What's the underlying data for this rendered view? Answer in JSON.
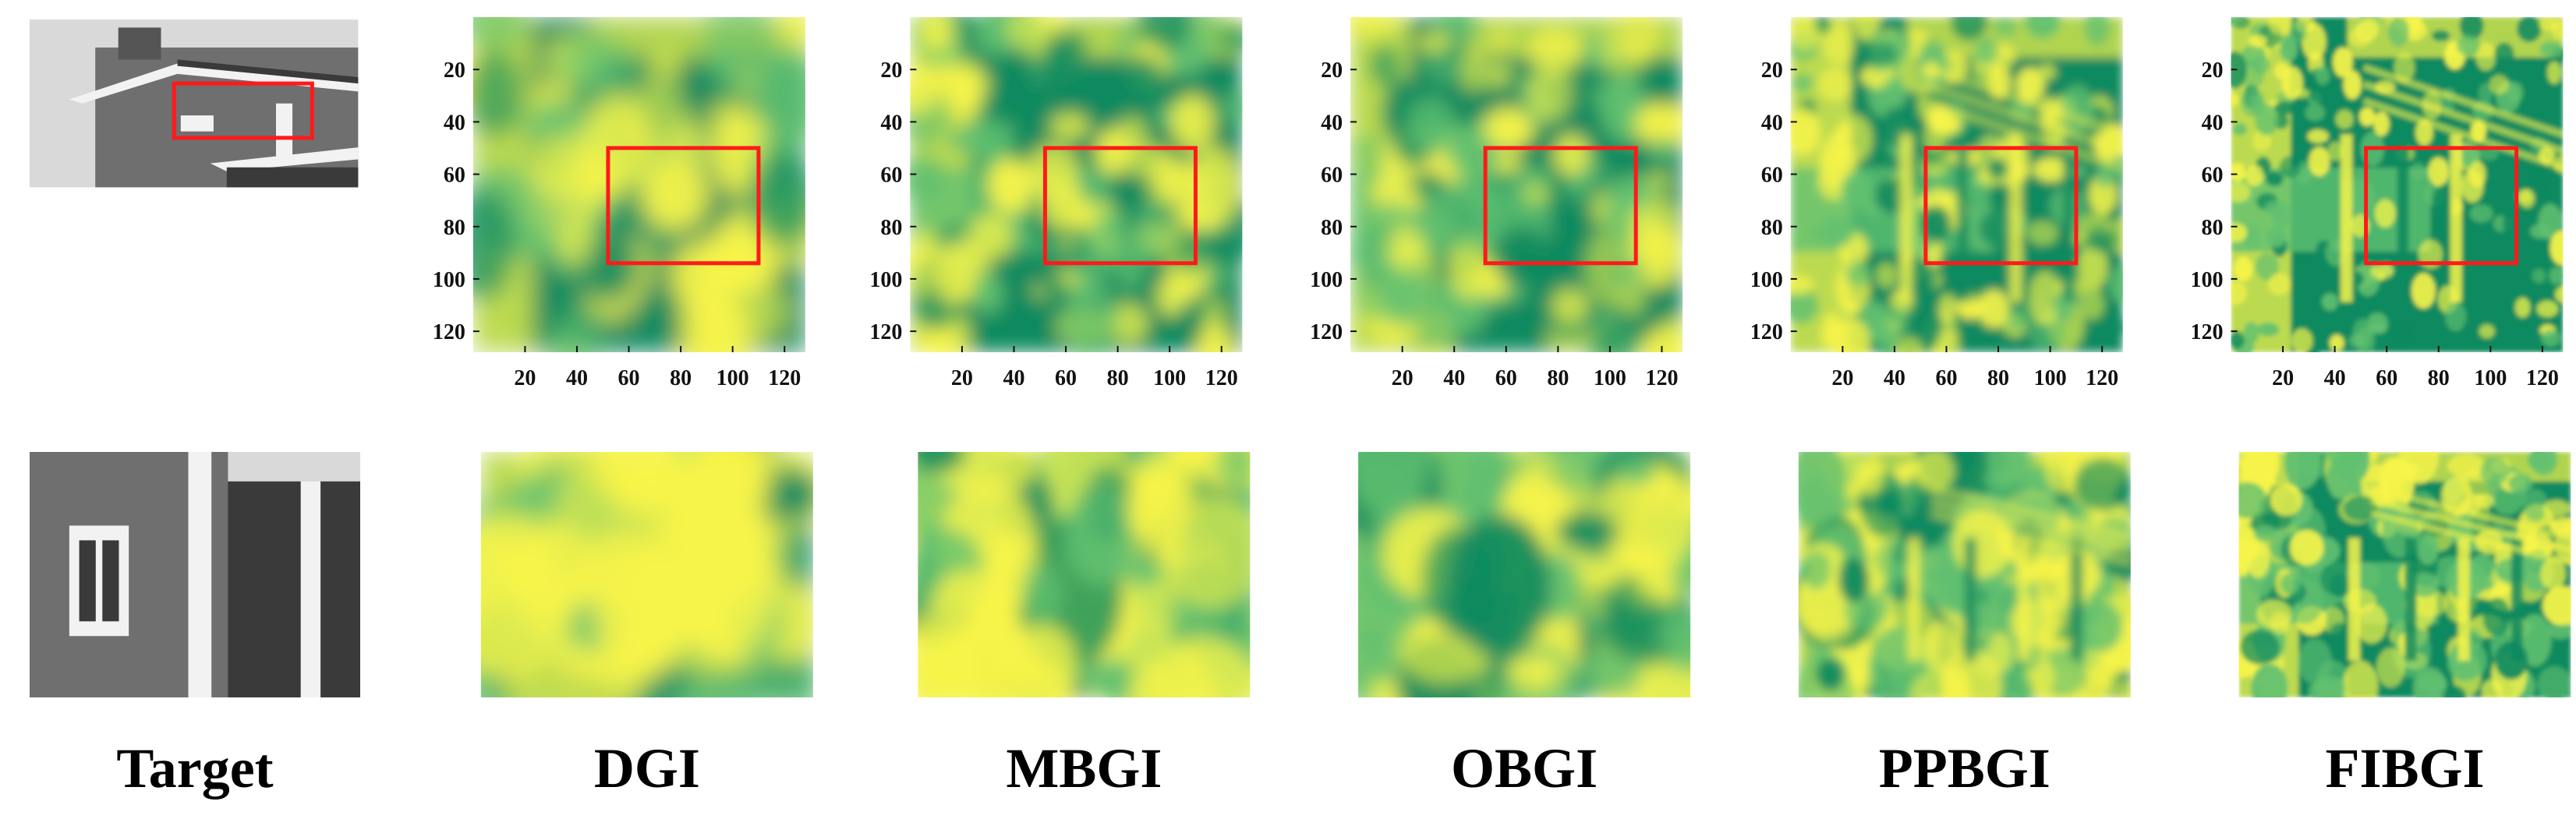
{
  "panels": [
    {
      "id": "target",
      "label": "Target",
      "kind": "photo"
    },
    {
      "id": "dgi",
      "label": "DGI",
      "kind": "heatmap",
      "detail": 0.15,
      "seed": 11
    },
    {
      "id": "mbgi",
      "label": "MBGI",
      "kind": "heatmap",
      "detail": 0.4,
      "seed": 23
    },
    {
      "id": "obgi",
      "label": "OBGI",
      "kind": "heatmap",
      "detail": 0.4,
      "seed": 37
    },
    {
      "id": "ppbgi",
      "label": "PPBGI",
      "kind": "heatmap",
      "detail": 0.75,
      "seed": 51
    },
    {
      "id": "fibgi",
      "label": "FIBGI",
      "kind": "heatmap",
      "detail": 0.95,
      "seed": 67
    }
  ],
  "axis": {
    "y_ticks": [
      "20",
      "40",
      "60",
      "80",
      "100",
      "120"
    ],
    "x_ticks": [
      "20",
      "40",
      "60",
      "80",
      "100",
      "120"
    ],
    "range": [
      0,
      128
    ]
  },
  "roi": {
    "x": [
      52,
      110
    ],
    "y": [
      50,
      94
    ]
  },
  "colors": {
    "low": "#0e8a5f",
    "mid": "#62c070",
    "high": "#f7f44a",
    "roi": "#ff1a1a",
    "photo_sky": "#d9d9d9",
    "photo_wall": "#6f6f6f",
    "photo_dark": "#3a3a3a",
    "photo_trim": "#f2f2f2"
  },
  "chart_data": {
    "type": "heatmap",
    "x_ticks": [
      "20",
      "40",
      "60",
      "80",
      "100",
      "120"
    ],
    "y_ticks": [
      "20",
      "40",
      "60",
      "80",
      "100",
      "120"
    ],
    "xlim": [
      0,
      128
    ],
    "ylim": [
      128,
      0
    ],
    "series": [
      {
        "name": "DGI"
      },
      {
        "name": "MBGI"
      },
      {
        "name": "OBGI"
      },
      {
        "name": "PPBGI"
      },
      {
        "name": "FIBGI"
      }
    ]
  }
}
